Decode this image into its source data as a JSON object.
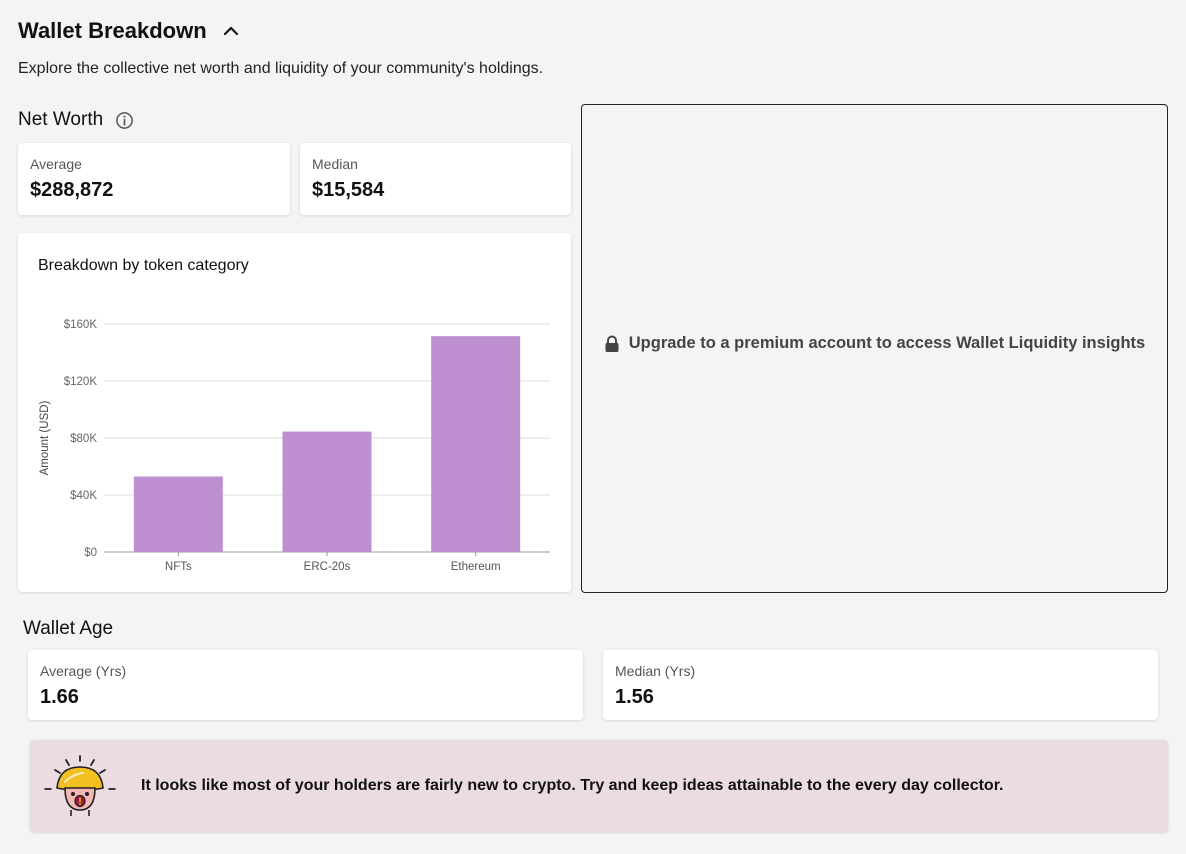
{
  "header": {
    "title": "Wallet Breakdown",
    "subtitle": "Explore the collective net worth and liquidity of your community's holdings."
  },
  "net_worth": {
    "title": "Net Worth",
    "average_label": "Average",
    "average_value": "$288,872",
    "median_label": "Median",
    "median_value": "$15,584"
  },
  "breakdown_card": {
    "title": "Breakdown by token category"
  },
  "chart_data": {
    "type": "bar",
    "title": "Breakdown by token category",
    "categories": [
      "NFTs",
      "ERC-20s",
      "Ethereum"
    ],
    "values": [
      53000,
      84500,
      151500
    ],
    "xlabel": "",
    "ylabel": "Amount (USD)",
    "ylim": [
      0,
      160000
    ],
    "yticks": [
      0,
      40000,
      80000,
      120000,
      160000
    ],
    "ytick_labels": [
      "$0",
      "$40K",
      "$80K",
      "$120K",
      "$160K"
    ],
    "grid": true,
    "bar_color": "#bd8fd0"
  },
  "liquidity": {
    "locked_message": "Upgrade to a premium account to access Wallet Liquidity insights"
  },
  "wallet_age": {
    "title": "Wallet Age",
    "average_label": "Average (Yrs)",
    "average_value": "1.66",
    "median_label": "Median (Yrs)",
    "median_value": "1.56"
  },
  "tip": {
    "text": "It looks like most of your holders are fairly new to crypto. Try and keep ideas attainable to the every day collector."
  },
  "icons": {
    "collapse": "chevron-up-icon",
    "info": "info-icon",
    "lock": "lock-icon",
    "mascot": "mushroom-mascot-icon"
  },
  "colors": {
    "background": "#f4f4f4",
    "bar": "#bd8fd0",
    "tip_background": "#ebdce1",
    "locked_text": "#444444"
  }
}
